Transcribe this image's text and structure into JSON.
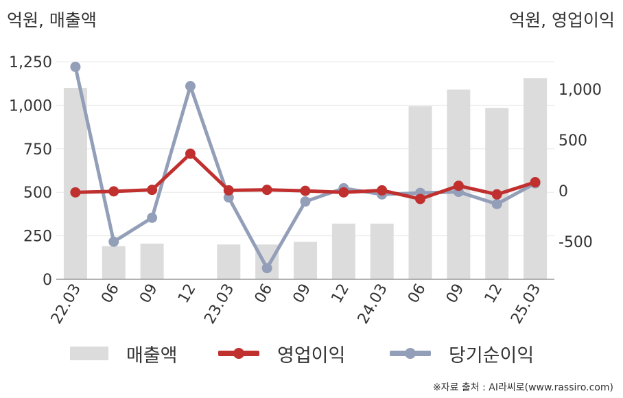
{
  "unit_left": "억원, 매출액",
  "unit_right": "억원, 영업이익",
  "source": "※자료 출처 : AI라씨로(www.rassiro.com)",
  "colors": {
    "revenue": "#dcdcdc",
    "operating": "#c0302f",
    "net": "#939fb8",
    "grid": "#e8e8e8",
    "axis": "#999999"
  },
  "chart_data": {
    "type": "bar",
    "categories": [
      "22.03",
      "06",
      "09",
      "12",
      "23.03",
      "06",
      "09",
      "12",
      "24.03",
      "06",
      "09",
      "12",
      "25.03"
    ],
    "y_left": {
      "ticks": [
        0,
        250,
        500,
        750,
        1000,
        1250
      ],
      "tick_labels": [
        "0",
        "250",
        "500",
        "750",
        "1,000",
        "1,250"
      ],
      "range": [
        0,
        1250
      ]
    },
    "y_right": {
      "ticks": [
        -500,
        0,
        500,
        1000
      ],
      "tick_labels": [
        "-500",
        "0",
        "500",
        "1,000"
      ],
      "range": [
        -870,
        1270
      ]
    },
    "series": [
      {
        "name": "매출액",
        "type": "bar",
        "axis": "left",
        "values": [
          1100,
          190,
          205,
          0,
          200,
          200,
          215,
          320,
          320,
          995,
          1090,
          985,
          1155
        ]
      },
      {
        "name": "영업이익",
        "type": "line",
        "axis": "right",
        "values": [
          -15,
          -5,
          10,
          365,
          5,
          10,
          0,
          -15,
          5,
          -80,
          50,
          -35,
          85
        ]
      },
      {
        "name": "당기순이익",
        "type": "line",
        "axis": "right",
        "values": [
          1220,
          -500,
          -265,
          1030,
          -65,
          -760,
          -105,
          25,
          -35,
          -20,
          -10,
          -130,
          75
        ]
      }
    ],
    "grid": true,
    "legend_position": "bottom"
  }
}
